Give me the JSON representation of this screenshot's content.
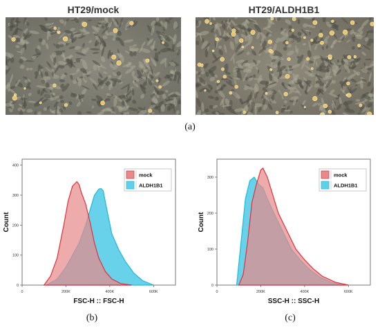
{
  "panel_a": {
    "left_title": "HT29/mock",
    "right_title": "HT29/ALDH1B1",
    "caption": "(a)"
  },
  "colors": {
    "mock_fill": "#e88a8a",
    "mock_line": "#e0303a",
    "aldh_fill": "#5fd0e8",
    "aldh_line": "#1fb8d8",
    "overlap": "#c8a3b3",
    "legend_frame": "#bbbbbb"
  },
  "chart_data": [
    {
      "type": "area",
      "caption": "(b)",
      "xlabel": "FSC-H :: FSC-H",
      "ylabel": "Count",
      "xlim": [
        0,
        700000
      ],
      "ylim": [
        0,
        420
      ],
      "x_ticks": [
        0,
        200000,
        400000,
        600000
      ],
      "x_tick_labels": [
        "0",
        "200K",
        "400K",
        "600K"
      ],
      "y_ticks": [
        0,
        100,
        200,
        300,
        400
      ],
      "y_tick_labels": [
        "0",
        "100",
        "200",
        "300",
        "400"
      ],
      "legend": [
        "mock",
        "ALDH1B1"
      ],
      "legend_position": "top-right",
      "series": [
        {
          "name": "mock",
          "x": [
            100000,
            130000,
            160000,
            190000,
            210000,
            230000,
            250000,
            260000,
            270000,
            290000,
            310000,
            330000,
            350000,
            380000,
            410000,
            450000,
            500000
          ],
          "y": [
            0,
            30,
            90,
            200,
            280,
            330,
            345,
            335,
            310,
            270,
            210,
            140,
            90,
            45,
            20,
            5,
            0
          ]
        },
        {
          "name": "ALDH1B1",
          "x": [
            110000,
            160000,
            200000,
            230000,
            260000,
            290000,
            310000,
            330000,
            350000,
            360000,
            370000,
            390000,
            410000,
            440000,
            470000,
            510000,
            550000,
            600000
          ],
          "y": [
            0,
            20,
            60,
            100,
            140,
            200,
            250,
            300,
            320,
            322,
            315,
            240,
            170,
            120,
            80,
            40,
            15,
            0
          ]
        }
      ]
    },
    {
      "type": "area",
      "caption": "(c)",
      "xlabel": "SSC-H :: SSC-H",
      "ylabel": "Count",
      "xlim": [
        0,
        700000
      ],
      "ylim": [
        0,
        350
      ],
      "x_ticks": [
        0,
        200000,
        400000,
        600000
      ],
      "x_tick_labels": [
        "0",
        "200K",
        "400K",
        "600K"
      ],
      "y_ticks": [
        0,
        100,
        200,
        300
      ],
      "y_tick_labels": [
        "0",
        "100",
        "200",
        "300"
      ],
      "legend": [
        "mock",
        "ALDH1B1"
      ],
      "legend_position": "top-right",
      "series": [
        {
          "name": "mock",
          "x": [
            100000,
            120000,
            140000,
            160000,
            180000,
            200000,
            210000,
            230000,
            250000,
            280000,
            320000,
            360000,
            400000,
            440000,
            480000,
            540000,
            600000
          ],
          "y": [
            0,
            30,
            120,
            230,
            280,
            320,
            325,
            300,
            260,
            200,
            150,
            100,
            70,
            45,
            25,
            8,
            0
          ]
        },
        {
          "name": "ALDH1B1",
          "x": [
            90000,
            110000,
            130000,
            150000,
            170000,
            190000,
            210000,
            230000,
            260000,
            300000,
            340000,
            380000,
            420000,
            470000,
            520000,
            580000
          ],
          "y": [
            0,
            120,
            240,
            290,
            300,
            280,
            270,
            240,
            200,
            150,
            100,
            70,
            45,
            22,
            8,
            0
          ]
        }
      ]
    }
  ]
}
